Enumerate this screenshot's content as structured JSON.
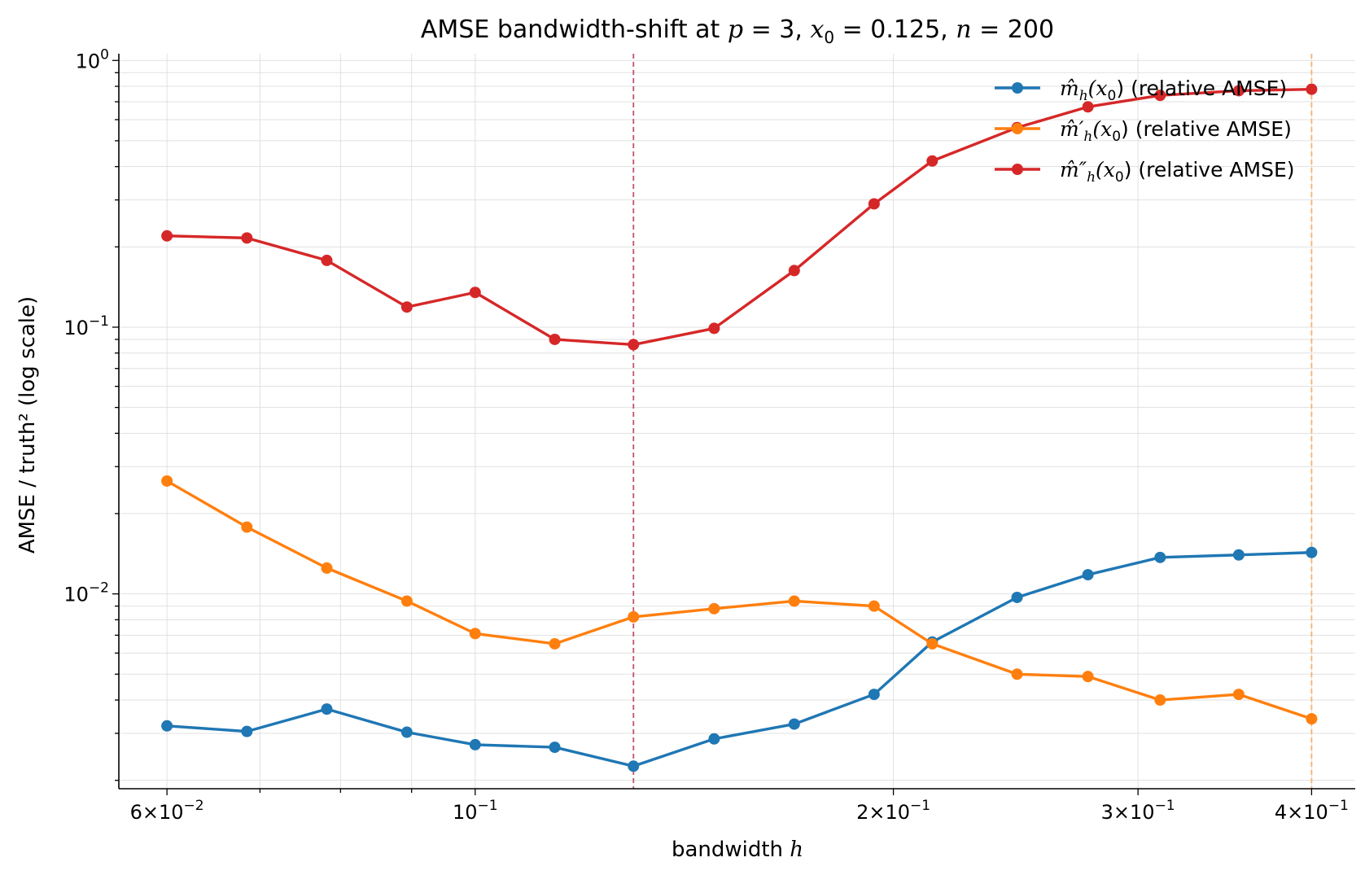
{
  "chart_data": {
    "type": "line",
    "title": {
      "prefix": "AMSE bandwidth-shift at ",
      "p_label": "p",
      "p_value": " = 3, ",
      "x0_label": "x",
      "x0_sub": "0",
      "x0_value": " = 0.125, ",
      "n_label": "n",
      "n_value": " = 200"
    },
    "xlabel": {
      "text": "bandwidth ",
      "var": "h"
    },
    "ylabel": "AMSE / truth² (log scale)",
    "x_scale": "log",
    "y_scale": "log",
    "xlim": [
      0.0554,
      0.43
    ],
    "ylim": [
      0.00186,
      1.06
    ],
    "x_ticks": [
      {
        "value": 0.06,
        "mant": "6×10",
        "exp": "−2"
      },
      {
        "value": 0.1,
        "mant": "10",
        "exp": "−1"
      },
      {
        "value": 0.2,
        "mant": "2×10",
        "exp": "−1"
      },
      {
        "value": 0.3,
        "mant": "3×10",
        "exp": "−1"
      },
      {
        "value": 0.4,
        "mant": "4×10",
        "exp": "−1"
      }
    ],
    "y_ticks": [
      {
        "value": 1.0,
        "mant": "10",
        "exp": "0"
      },
      {
        "value": 0.1,
        "mant": "10",
        "exp": "−1"
      },
      {
        "value": 0.01,
        "mant": "10",
        "exp": "−2"
      }
    ],
    "grid": true,
    "legend_position": "top-right",
    "vlines": [
      {
        "x": 0.13,
        "color": "#c0546a",
        "style": "dashed"
      },
      {
        "x": 0.4,
        "color": "#f7b26b",
        "style": "dashed"
      }
    ],
    "x": [
      0.06,
      0.0685,
      0.0782,
      0.0893,
      0.1,
      0.1141,
      0.13,
      0.1486,
      0.1697,
      0.1937,
      0.2133,
      0.2455,
      0.2761,
      0.3112,
      0.3545,
      0.4
    ],
    "series": [
      {
        "name": "m̂h(x0) (relative AMSE)",
        "legend": {
          "sym": "m̂",
          "prime": "",
          "sub": "h",
          "arg_open": "(x",
          "arg_sub": "0",
          "arg_close": ")",
          "suffix": "  (relative AMSE)"
        },
        "color": "#1f77b4",
        "values": [
          0.0032,
          0.00305,
          0.0037,
          0.00303,
          0.00272,
          0.00266,
          0.00226,
          0.00286,
          0.00325,
          0.0042,
          0.0066,
          0.0097,
          0.0118,
          0.0137,
          0.014,
          0.0143
        ]
      },
      {
        "name": "m̂′h(x0) (relative AMSE)",
        "legend": {
          "sym": "m̂",
          "prime": "′",
          "sub": "h",
          "arg_open": "(x",
          "arg_sub": "0",
          "arg_close": ")",
          "suffix": "  (relative AMSE)"
        },
        "color": "#ff7f0e",
        "values": [
          0.0265,
          0.0178,
          0.0125,
          0.0094,
          0.0071,
          0.0065,
          0.0082,
          0.0088,
          0.0094,
          0.009,
          0.0065,
          0.005,
          0.0049,
          0.004,
          0.0042,
          0.0034
        ]
      },
      {
        "name": "m̂″h(x0) (relative AMSE)",
        "legend": {
          "sym": "m̂",
          "prime": "″",
          "sub": "h",
          "arg_open": "(x",
          "arg_sub": "0",
          "arg_close": ")",
          "suffix": "  (relative AMSE)"
        },
        "color": "#d62728",
        "values": [
          0.22,
          0.216,
          0.178,
          0.119,
          0.135,
          0.09,
          0.086,
          0.099,
          0.163,
          0.29,
          0.42,
          0.56,
          0.67,
          0.74,
          0.77,
          0.78
        ]
      }
    ]
  }
}
